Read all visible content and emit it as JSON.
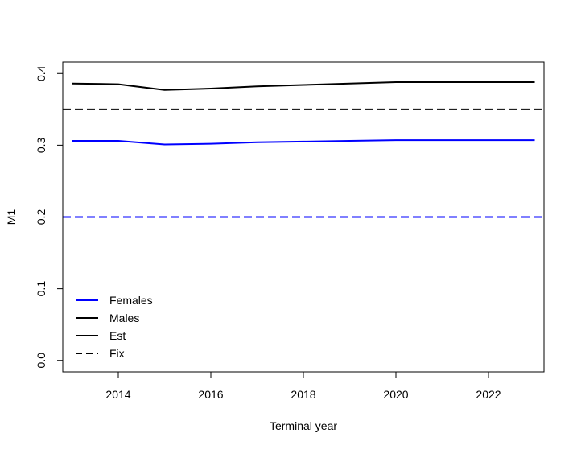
{
  "chart_data": {
    "type": "line",
    "title": "",
    "xlabel": "Terminal year",
    "ylabel": "M1",
    "xlim": [
      2012.8,
      2023.2
    ],
    "ylim": [
      -0.016,
      0.416
    ],
    "x_ticks": [
      2014,
      2016,
      2018,
      2020,
      2022
    ],
    "y_ticks": [
      0.0,
      0.1,
      0.2,
      0.3,
      0.4
    ],
    "y_tick_labels": [
      "0.0",
      "0.1",
      "0.2",
      "0.3",
      "0.4"
    ],
    "grid": false,
    "series": [
      {
        "name": "Males",
        "color": "#000000",
        "line_style": "solid",
        "x": [
          2013,
          2014,
          2015,
          2016,
          2017,
          2018,
          2019,
          2020,
          2021,
          2022,
          2023
        ],
        "y": [
          0.386,
          0.385,
          0.377,
          0.379,
          0.382,
          0.384,
          0.386,
          0.388,
          0.388,
          0.388,
          0.388
        ]
      },
      {
        "name": "Females",
        "color": "#0000ff",
        "line_style": "solid",
        "x": [
          2013,
          2014,
          2015,
          2016,
          2017,
          2018,
          2019,
          2020,
          2021,
          2022,
          2023
        ],
        "y": [
          0.306,
          0.306,
          0.301,
          0.302,
          0.304,
          0.305,
          0.306,
          0.307,
          0.307,
          0.307,
          0.307
        ]
      }
    ],
    "reference_lines": [
      {
        "y": 0.35,
        "color": "#000000",
        "line_style": "dashed"
      },
      {
        "y": 0.2,
        "color": "#0000ff",
        "line_style": "dashed"
      }
    ],
    "legend": {
      "placement": "bottom-left",
      "entries": [
        {
          "label": "Females",
          "color": "#0000ff",
          "line_style": "solid"
        },
        {
          "label": "Males",
          "color": "#000000",
          "line_style": "solid"
        },
        {
          "label": "Est",
          "color": "#000000",
          "line_style": "solid"
        },
        {
          "label": "Fix",
          "color": "#000000",
          "line_style": "dashed"
        }
      ]
    }
  }
}
